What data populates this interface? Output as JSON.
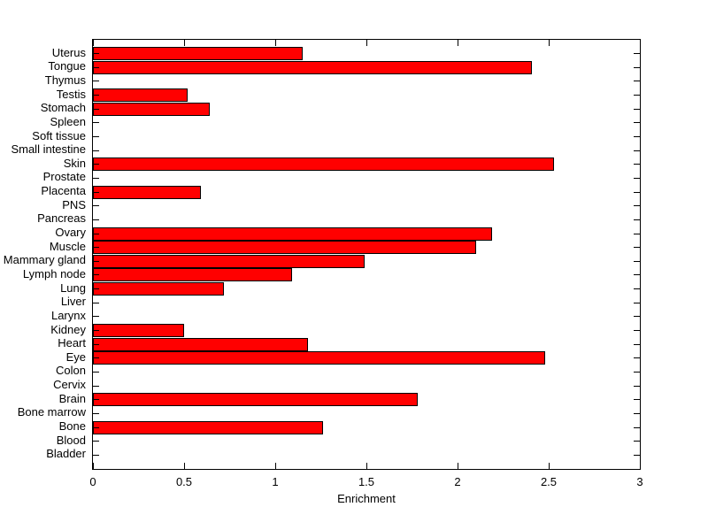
{
  "chart_data": {
    "type": "bar",
    "orientation": "horizontal",
    "title": "",
    "xlabel": "Enrichment",
    "ylabel": "",
    "xlim": [
      0,
      3
    ],
    "xticks": [
      0,
      0.5,
      1,
      1.5,
      2,
      2.5,
      3
    ],
    "xtick_labels": [
      "0",
      "0.5",
      "1",
      "1.5",
      "2",
      "2.5",
      "3"
    ],
    "grid": false,
    "legend": "none",
    "bar_color": "#ff0000",
    "bar_edge_color": "#000000",
    "background_color": "#ffffff",
    "category_order": "top_to_bottom",
    "categories": [
      "Uterus",
      "Tongue",
      "Thymus",
      "Testis",
      "Stomach",
      "Spleen",
      "Soft tissue",
      "Small intestine",
      "Skin",
      "Prostate",
      "Placenta",
      "PNS",
      "Pancreas",
      "Ovary",
      "Muscle",
      "Mammary gland",
      "Lymph node",
      "Lung",
      "Liver",
      "Larynx",
      "Kidney",
      "Heart",
      "Eye",
      "Colon",
      "Cervix",
      "Brain",
      "Bone marrow",
      "Bone",
      "Blood",
      "Bladder"
    ],
    "values": [
      1.15,
      2.41,
      0,
      0.52,
      0.64,
      0,
      0,
      0,
      2.53,
      0,
      0.59,
      0,
      0,
      2.19,
      2.1,
      1.49,
      1.09,
      0.72,
      0,
      0,
      0.5,
      1.18,
      2.48,
      0,
      0,
      1.78,
      0,
      1.26,
      0,
      0
    ]
  }
}
